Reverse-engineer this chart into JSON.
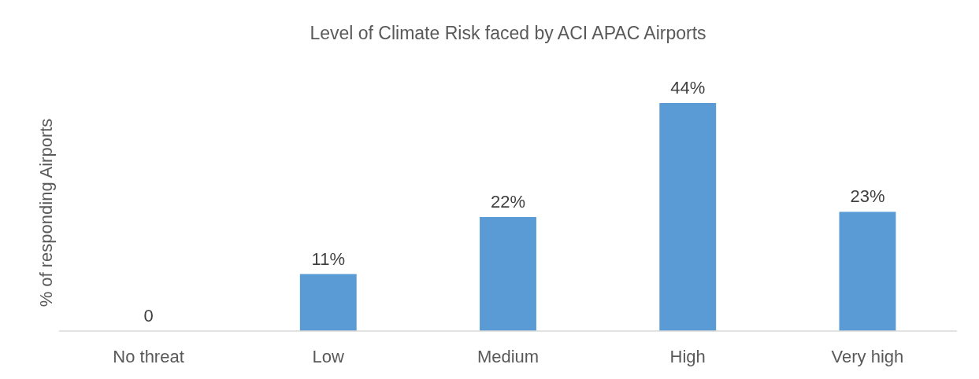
{
  "chart_data": {
    "type": "bar",
    "title": "Level of Climate Risk faced by ACI APAC Airports",
    "ylabel": "% of responding Airports",
    "categories": [
      "No threat",
      "Low",
      "Medium",
      "High",
      "Very high"
    ],
    "values": [
      0,
      11,
      22,
      44,
      23
    ],
    "value_labels": [
      "0",
      "11%",
      "22%",
      "44%",
      "23%"
    ],
    "color": "#5b9bd5"
  }
}
